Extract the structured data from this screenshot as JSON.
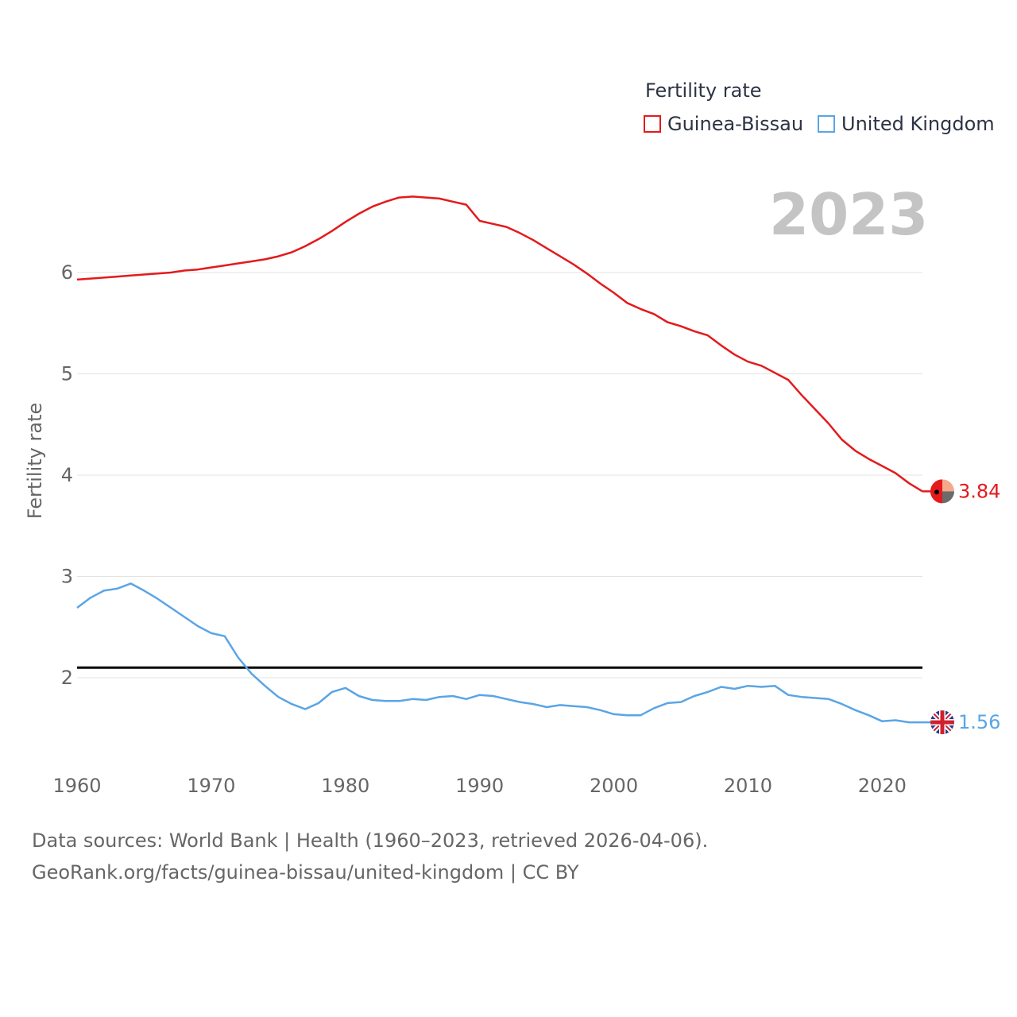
{
  "year_label": "2023",
  "legend": {
    "title": "Fertility rate",
    "items": [
      {
        "name": "Guinea-Bissau",
        "color": "#e41a1c"
      },
      {
        "name": "United Kingdom",
        "color": "#5aa5e6"
      }
    ]
  },
  "footer": {
    "line1": "Data sources: World Bank | Health (1960–2023, retrieved 2026-04-06).",
    "line2": "GeoRank.org/facts/guinea-bissau/united-kingdom | CC BY"
  },
  "chart_data": {
    "type": "line",
    "title": "Fertility rate",
    "xlabel": "",
    "ylabel": "Fertility rate",
    "xlim": [
      1960,
      2023
    ],
    "ylim": [
      1.2,
      7.0
    ],
    "x_ticks": [
      "1960",
      "1970",
      "1980",
      "1990",
      "2000",
      "2010",
      "2020"
    ],
    "y_ticks": [
      "2",
      "3",
      "4",
      "5",
      "6"
    ],
    "reference_line": {
      "value": 2.1,
      "color": "#000000"
    },
    "x": [
      1960,
      1961,
      1962,
      1963,
      1964,
      1965,
      1966,
      1967,
      1968,
      1969,
      1970,
      1971,
      1972,
      1973,
      1974,
      1975,
      1976,
      1977,
      1978,
      1979,
      1980,
      1981,
      1982,
      1983,
      1984,
      1985,
      1986,
      1987,
      1988,
      1989,
      1990,
      1991,
      1992,
      1993,
      1994,
      1995,
      1996,
      1997,
      1998,
      1999,
      2000,
      2001,
      2002,
      2003,
      2004,
      2005,
      2006,
      2007,
      2008,
      2009,
      2010,
      2011,
      2012,
      2013,
      2014,
      2015,
      2016,
      2017,
      2018,
      2019,
      2020,
      2021,
      2022,
      2023
    ],
    "series": [
      {
        "name": "Guinea-Bissau",
        "color": "#e41a1c",
        "end_label": "3.84",
        "values": [
          5.93,
          5.94,
          5.95,
          5.96,
          5.97,
          5.98,
          5.99,
          6.0,
          6.02,
          6.03,
          6.05,
          6.07,
          6.09,
          6.11,
          6.13,
          6.16,
          6.2,
          6.26,
          6.33,
          6.41,
          6.5,
          6.58,
          6.65,
          6.7,
          6.74,
          6.75,
          6.74,
          6.73,
          6.7,
          6.67,
          6.51,
          6.48,
          6.45,
          6.39,
          6.32,
          6.24,
          6.16,
          6.08,
          5.99,
          5.89,
          5.8,
          5.7,
          5.64,
          5.59,
          5.51,
          5.47,
          5.42,
          5.38,
          5.28,
          5.19,
          5.12,
          5.08,
          5.01,
          4.94,
          4.79,
          4.65,
          4.51,
          4.35,
          4.24,
          4.16,
          4.09,
          4.02,
          3.92,
          3.84
        ]
      },
      {
        "name": "United Kingdom",
        "color": "#5aa5e6",
        "end_label": "1.56",
        "values": [
          2.69,
          2.79,
          2.86,
          2.88,
          2.93,
          2.86,
          2.78,
          2.69,
          2.6,
          2.51,
          2.44,
          2.41,
          2.2,
          2.04,
          1.92,
          1.81,
          1.74,
          1.69,
          1.75,
          1.86,
          1.9,
          1.82,
          1.78,
          1.77,
          1.77,
          1.79,
          1.78,
          1.81,
          1.82,
          1.79,
          1.83,
          1.82,
          1.79,
          1.76,
          1.74,
          1.71,
          1.73,
          1.72,
          1.71,
          1.68,
          1.64,
          1.63,
          1.63,
          1.7,
          1.75,
          1.76,
          1.82,
          1.86,
          1.91,
          1.89,
          1.92,
          1.91,
          1.92,
          1.83,
          1.81,
          1.8,
          1.79,
          1.74,
          1.68,
          1.63,
          1.57,
          1.58,
          1.56,
          1.56
        ]
      }
    ]
  }
}
